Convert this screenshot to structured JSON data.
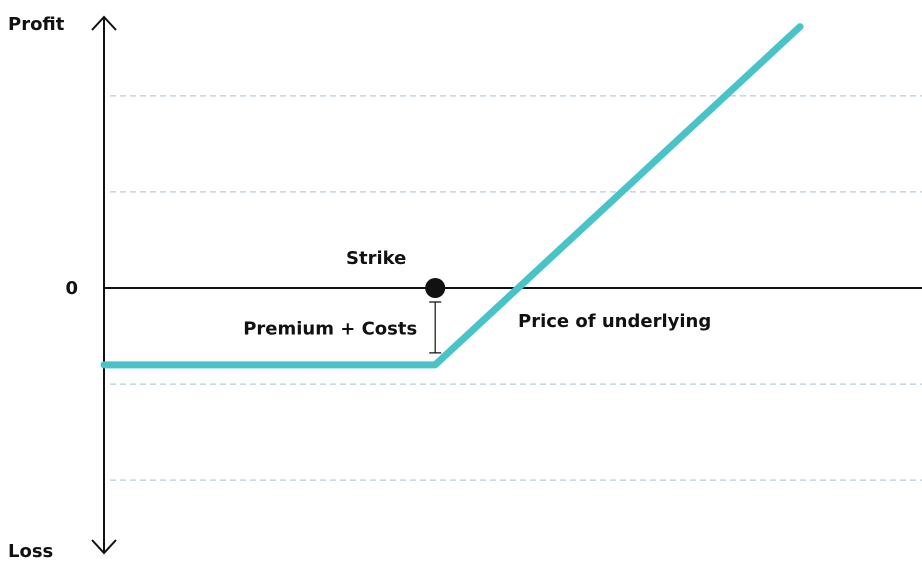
{
  "chart_data": {
    "type": "line",
    "y_label_top": "Profit",
    "y_label_bottom": "Loss",
    "x_label": "Price of underlying",
    "x": [
      0,
      3.45,
      7.25
    ],
    "values": [
      -0.8,
      -0.8,
      2.72
    ],
    "color": "#48c4c9",
    "xlim": [
      0,
      8.5
    ],
    "ylim": [
      -2.8,
      2.8
    ],
    "yticks": [
      0
    ],
    "gridlines": [
      2,
      1,
      -1,
      -2
    ],
    "grid_color": "#a9bfcc",
    "strike": {
      "label": "Strike",
      "x": 3.45,
      "y": 0
    },
    "premium": {
      "label": "Premium + Costs",
      "value": -0.8
    }
  }
}
